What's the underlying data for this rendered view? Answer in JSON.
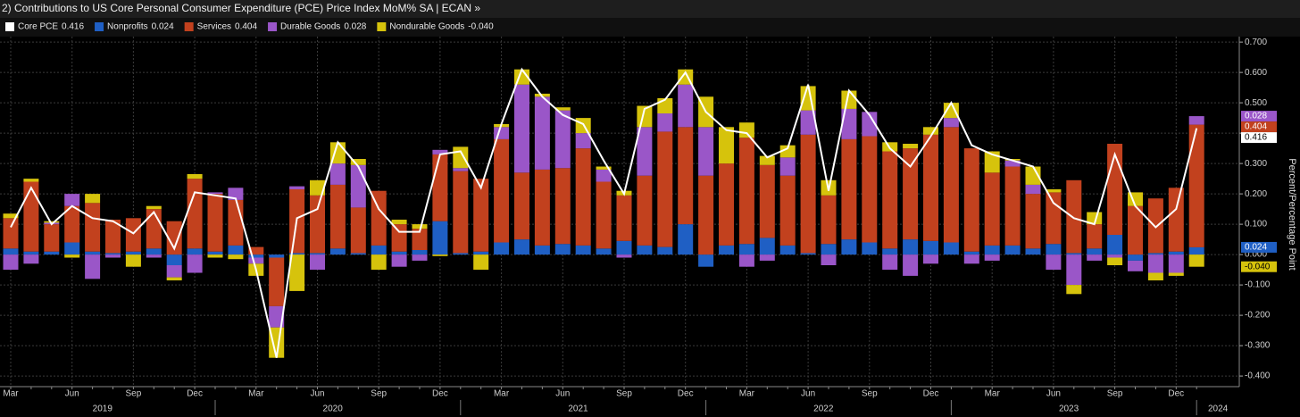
{
  "header": {
    "menu_number": "2)",
    "title": "Contributions to US Core Personal Consumer Expenditure (PCE) Price Index MoM% SA | ECAN »"
  },
  "chart_data": {
    "type": "bar",
    "stacked": true,
    "y_axis_label": "Percent/Percentage Point",
    "categories": [
      "Mar",
      null,
      null,
      "Jun",
      null,
      null,
      "Sep",
      null,
      null,
      "Dec",
      null,
      null,
      "Mar",
      null,
      null,
      "Jun",
      null,
      null,
      "Sep",
      null,
      null,
      "Dec",
      null,
      null,
      "Mar",
      null,
      null,
      "Jun",
      null,
      null,
      "Sep",
      null,
      null,
      "Dec",
      null,
      null,
      "Mar",
      null,
      null,
      "Jun",
      null,
      null,
      "Sep",
      null,
      null,
      "Dec",
      null,
      null,
      "Mar",
      null,
      null,
      "Jun",
      null,
      null,
      "Sep",
      null,
      null,
      "Dec",
      null
    ],
    "years": [
      "2019",
      "2020",
      "2021",
      "2022",
      "2023",
      "2024"
    ],
    "ylim": [
      -0.435,
      0.718
    ],
    "yticks": [
      {
        "value": 0.7,
        "label": "0.700"
      },
      {
        "value": 0.6,
        "label": "0.600"
      },
      {
        "value": 0.5,
        "label": "0.500"
      },
      {
        "value": 0.4,
        "label": "0.400"
      },
      {
        "value": 0.3,
        "label": "0.300"
      },
      {
        "value": 0.2,
        "label": "0.200"
      },
      {
        "value": 0.1,
        "label": "0.100"
      },
      {
        "value": 0,
        "label": "0.000"
      },
      {
        "value": -0.1,
        "label": "-0.100"
      },
      {
        "value": -0.2,
        "label": "-0.200"
      },
      {
        "value": -0.3,
        "label": "-0.300"
      },
      {
        "value": -0.4,
        "label": "-0.400"
      }
    ],
    "grid": true,
    "series": [
      {
        "name": "Core PCE",
        "type": "line",
        "color": "#ffffff",
        "last_label": "0.416",
        "values": [
          0.09,
          0.22,
          0.1,
          0.16,
          0.12,
          0.11,
          0.07,
          0.14,
          0.02,
          0.205,
          0.195,
          0.185,
          -0.05,
          -0.34,
          0.12,
          0.15,
          0.37,
          0.29,
          0.15,
          0.075,
          0.075,
          0.33,
          0.34,
          0.22,
          0.43,
          0.61,
          0.52,
          0.46,
          0.43,
          0.31,
          0.2,
          0.48,
          0.51,
          0.6,
          0.47,
          0.41,
          0.4,
          0.32,
          0.35,
          0.56,
          0.21,
          0.54,
          0.46,
          0.35,
          0.29,
          0.39,
          0.5,
          0.36,
          0.33,
          0.31,
          0.29,
          0.17,
          0.12,
          0.1,
          0.33,
          0.16,
          0.09,
          0.15,
          0.416
        ]
      },
      {
        "name": "Nonprofits",
        "type": "bar",
        "color": "#1f5fc4",
        "last_label": "0.024",
        "values": [
          0.02,
          0.01,
          0.01,
          0.04,
          0.01,
          0.005,
          0.01,
          0.02,
          -0.035,
          0.02,
          0.01,
          0.03,
          -0.01,
          -0.01,
          0.005,
          0.005,
          0.02,
          0.005,
          0.03,
          0.01,
          0.015,
          0.11,
          0.005,
          0.01,
          0.04,
          0.05,
          0.03,
          0.035,
          0.03,
          0.02,
          0.045,
          0.03,
          0.025,
          0.1,
          -0.04,
          0.03,
          0.035,
          0.055,
          0.03,
          0.005,
          0.035,
          0.05,
          0.04,
          0.02,
          0.05,
          0.045,
          0.04,
          0.01,
          0.03,
          0.03,
          0.02,
          0.035,
          0.005,
          0.02,
          0.065,
          -0.02,
          0.005,
          0.01,
          0.024
        ]
      },
      {
        "name": "Services",
        "type": "bar",
        "color": "#c2411e",
        "last_label": "0.404",
        "values": [
          0.1,
          0.23,
          0.09,
          0.12,
          0.16,
          0.11,
          0.11,
          0.13,
          0.11,
          0.23,
          0.19,
          0.15,
          0.025,
          -0.16,
          0.21,
          0.19,
          0.21,
          0.15,
          0.18,
          0.09,
          0.07,
          0.22,
          0.27,
          0.24,
          0.34,
          0.22,
          0.25,
          0.25,
          0.32,
          0.22,
          0.15,
          0.23,
          0.38,
          0.32,
          0.26,
          0.27,
          0.35,
          0.24,
          0.23,
          0.39,
          0.16,
          0.33,
          0.35,
          0.32,
          0.3,
          0.35,
          0.38,
          0.34,
          0.24,
          0.26,
          0.18,
          0.17,
          0.24,
          0.08,
          0.3,
          0.16,
          0.18,
          0.21,
          0.404
        ]
      },
      {
        "name": "Durable Goods",
        "type": "bar",
        "color": "#9a56c8",
        "last_label": "0.028",
        "values": [
          -0.05,
          -0.03,
          0.005,
          0.04,
          -0.08,
          -0.01,
          0,
          -0.01,
          -0.04,
          -0.06,
          0.005,
          0.04,
          -0.02,
          -0.07,
          0.01,
          -0.05,
          0.07,
          0.14,
          0,
          -0.04,
          -0.02,
          0.015,
          0.01,
          0,
          0.04,
          0.29,
          0.24,
          0.19,
          0.05,
          0.04,
          -0.01,
          0.16,
          0.06,
          0.14,
          0.16,
          0,
          -0.04,
          -0.02,
          0.06,
          0.08,
          -0.035,
          0.1,
          0.08,
          -0.05,
          -0.07,
          -0.03,
          0.03,
          -0.03,
          -0.02,
          0.02,
          0.03,
          -0.05,
          -0.1,
          -0.02,
          -0.01,
          -0.035,
          -0.06,
          -0.06,
          0.028
        ]
      },
      {
        "name": "Nondurable Goods",
        "type": "bar",
        "color": "#d6c30c",
        "last_label": "-0.040",
        "values": [
          0.015,
          0.01,
          0.005,
          -0.01,
          0.03,
          0,
          -0.04,
          0.01,
          -0.01,
          0.015,
          -0.01,
          -0.015,
          -0.04,
          -0.1,
          -0.12,
          0.05,
          0.07,
          0.02,
          -0.05,
          0.015,
          0.015,
          -0.005,
          0.07,
          -0.05,
          0.01,
          0.05,
          0.01,
          0.01,
          0.05,
          0.01,
          0.015,
          0.07,
          0.05,
          0.05,
          0.1,
          0.12,
          0.05,
          0.03,
          0.04,
          0.08,
          0.05,
          0.06,
          0,
          0.03,
          0.015,
          0.025,
          0.05,
          0,
          0.07,
          0.005,
          0.06,
          0.01,
          -0.03,
          0.04,
          -0.025,
          0.045,
          -0.025,
          -0.01,
          -0.04
        ]
      }
    ]
  }
}
